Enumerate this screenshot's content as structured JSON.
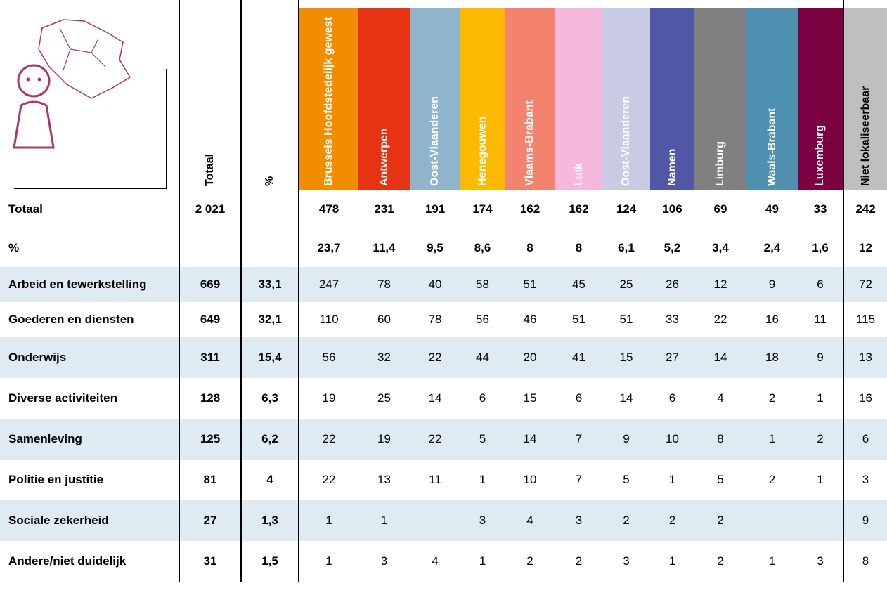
{
  "table": {
    "header": [
      "Totaal",
      "%",
      "Brussels Hoofdstedelijk gewest",
      "Antwerpen",
      "Oost-Vlaanderen",
      "Henegouwen",
      "Vlaams-Brabant",
      "Luik",
      "Oost-Vlaanderen",
      "Namen",
      "Limburg",
      "Waals-Brabant",
      "Luxemburg",
      "Niet lokaliseerbaar"
    ],
    "rows": [
      {
        "label": "Totaal",
        "total": "2 021",
        "pct": null,
        "values": [
          "478",
          "231",
          "191",
          "174",
          "162",
          "162",
          "124",
          "106",
          "69",
          "49",
          "33",
          "242"
        ]
      },
      {
        "label": "%",
        "total": null,
        "pct": null,
        "values": [
          "23,7",
          "11,4",
          "9,5",
          "8,6",
          "8",
          "8",
          "6,1",
          "5,2",
          "3,4",
          "2,4",
          "1,6",
          "12"
        ]
      },
      {
        "label": "Arbeid en tewerkstelling",
        "total": "669",
        "pct": "33,1",
        "values": [
          "247",
          "78",
          "40",
          "58",
          "51",
          "45",
          "25",
          "26",
          "12",
          "9",
          "6",
          "72"
        ]
      },
      {
        "label": "Goederen en diensten",
        "total": "649",
        "pct": "32,1",
        "values": [
          "110",
          "60",
          "78",
          "56",
          "46",
          "51",
          "51",
          "33",
          "22",
          "16",
          "11",
          "115"
        ]
      },
      {
        "label": "Onderwijs",
        "total": "311",
        "pct": "15,4",
        "values": [
          "56",
          "32",
          "22",
          "44",
          "20",
          "41",
          "15",
          "27",
          "14",
          "18",
          "9",
          "13"
        ]
      },
      {
        "label": "Diverse activiteiten",
        "total": "128",
        "pct": "6,3",
        "values": [
          "19",
          "25",
          "14",
          "6",
          "15",
          "6",
          "14",
          "6",
          "4",
          "2",
          "1",
          "16"
        ]
      },
      {
        "label": "Samenleving",
        "total": "125",
        "pct": "6,2",
        "values": [
          "22",
          "19",
          "22",
          "5",
          "14",
          "7",
          "9",
          "10",
          "8",
          "1",
          "2",
          "6"
        ]
      },
      {
        "label": "Politie en justitie",
        "total": "81",
        "pct": "4",
        "values": [
          "22",
          "13",
          "11",
          "1",
          "10",
          "7",
          "5",
          "1",
          "5",
          "2",
          "1",
          "3"
        ]
      },
      {
        "label": "Sociale zekerheid",
        "total": "27",
        "pct": "1,3",
        "values": [
          "1",
          "1",
          null,
          "3",
          "4",
          "3",
          "2",
          "2",
          "2",
          null,
          null,
          "9"
        ]
      },
      {
        "label": "Andere/niet duidelijk",
        "total": "31",
        "pct": "1,5",
        "values": [
          "1",
          "3",
          "4",
          "1",
          "2",
          "2",
          "3",
          "1",
          "2",
          "1",
          "3",
          "8"
        ]
      }
    ]
  }
}
